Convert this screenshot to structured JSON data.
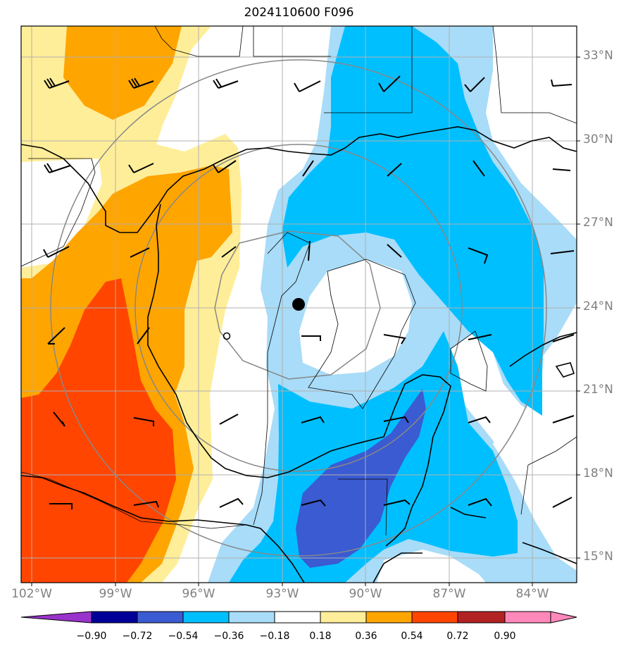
{
  "title": "2024110600 F096",
  "map": {
    "lat_labels": [
      "33°N",
      "30°N",
      "27°N",
      "24°N",
      "21°N",
      "18°N",
      "15°N"
    ],
    "lon_labels": [
      "102°W",
      "99°W",
      "96°W",
      "93°W",
      "90°W",
      "87°W",
      "84°W"
    ],
    "storm_center": "filled-circle-marker",
    "secondary_center": "open-circle-marker",
    "range_rings": "gray-circles",
    "wind_barbs": "black-barbs",
    "colors": {
      "grid": "#b0b0b0",
      "ring": "#888888",
      "coast": "#000000"
    }
  },
  "colorbar": {
    "labels": [
      "−0.90",
      "−0.72",
      "−0.54",
      "−0.36",
      "−0.18",
      "0.18",
      "0.36",
      "0.54",
      "0.72",
      "0.90"
    ],
    "colors": [
      "#9933cc",
      "#000099",
      "#3a5bd1",
      "#00bfff",
      "#a8dcf8",
      "#ffffff",
      "#ffee99",
      "#ffa500",
      "#ff4500",
      "#b22222",
      "#ff88bb"
    ]
  }
}
